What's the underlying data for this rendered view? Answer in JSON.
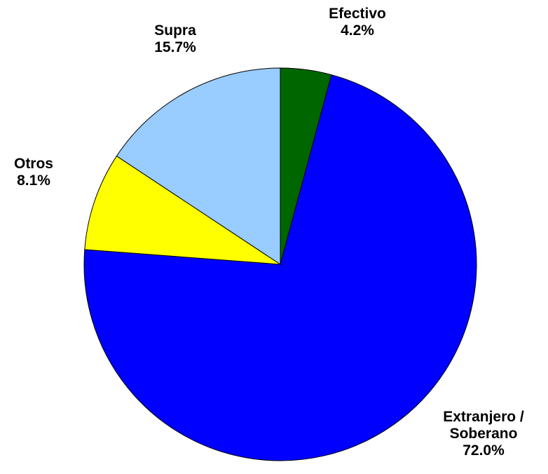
{
  "chart_data": {
    "type": "pie",
    "start_angle_deg": 0,
    "direction": "clockwise",
    "slices": [
      {
        "name": "Efectivo",
        "value": 4.2,
        "label": "4.2%",
        "color": "#006600"
      },
      {
        "name": "Extranjero / Soberano",
        "name_lines": [
          "Extranjero /",
          "Soberano"
        ],
        "value": 72.0,
        "label": "72.0%",
        "color": "#0000FF"
      },
      {
        "name": "Otros",
        "value": 8.1,
        "label": "8.1%",
        "color": "#FFFF00"
      },
      {
        "name": "Supra",
        "value": 15.7,
        "label": "15.7%",
        "color": "#99CCFF"
      }
    ],
    "outline_color": "#000000",
    "legend": "none"
  }
}
